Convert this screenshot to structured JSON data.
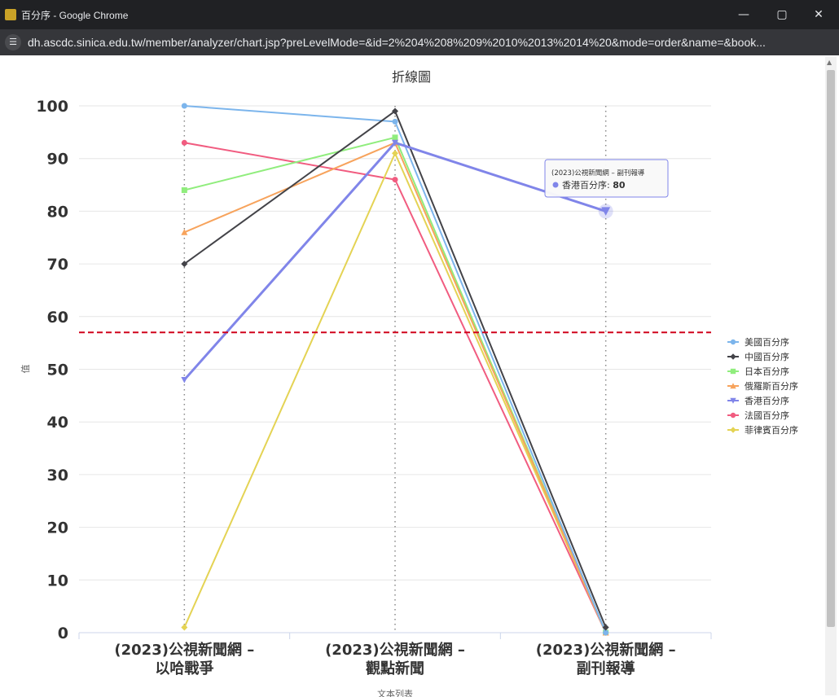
{
  "window": {
    "title": "百分序 - Google Chrome",
    "url": "dh.ascdc.sinica.edu.tw/member/analyzer/chart.jsp?preLevelMode=&id=2%204%208%209%2010%2013%2014%20&mode=order&name=&book..."
  },
  "chart_data": {
    "type": "line",
    "title": "折線圖",
    "xlabel": "文本列表",
    "ylabel": "值",
    "ylim": [
      0,
      100
    ],
    "yticks": [
      "0",
      "10",
      "20",
      "30",
      "40",
      "50",
      "60",
      "70",
      "80",
      "90",
      "100"
    ],
    "categories": [
      "(2023)公視新聞網 – 以哈戰爭",
      "(2023)公視新聞網 – 觀點新聞",
      "(2023)公視新聞網 – 副刊報導"
    ],
    "category_lines": [
      [
        "(2023)公視新聞網 –",
        "以哈戰爭"
      ],
      [
        "(2023)公視新聞網 –",
        "觀點新聞"
      ],
      [
        "(2023)公視新聞網 –",
        "副刊報導"
      ]
    ],
    "reference_line": 57,
    "reference_color": "#d0021b",
    "grid": true,
    "legend_position": "right",
    "series": [
      {
        "name": "美國百分序",
        "color": "#7cb5ec",
        "marker": "circle",
        "values": [
          100,
          97,
          0
        ]
      },
      {
        "name": "中國百分序",
        "color": "#434348",
        "marker": "diamond",
        "values": [
          70,
          99,
          1
        ]
      },
      {
        "name": "日本百分序",
        "color": "#90ed7d",
        "marker": "square",
        "values": [
          84,
          94,
          0
        ]
      },
      {
        "name": "俄羅斯百分序",
        "color": "#f7a35c",
        "marker": "triangle",
        "values": [
          76,
          93,
          0
        ]
      },
      {
        "name": "香港百分序",
        "color": "#8085e9",
        "marker": "triangle-down",
        "values": [
          48,
          93,
          80
        ]
      },
      {
        "name": "法國百分序",
        "color": "#f15c80",
        "marker": "circle",
        "values": [
          93,
          86,
          0
        ]
      },
      {
        "name": "菲律賓百分序",
        "color": "#e4d354",
        "marker": "diamond",
        "values": [
          1,
          91,
          0
        ]
      }
    ],
    "tooltip": {
      "header": "(2023)公視新聞網 – 副刊報導",
      "label": "香港百分序: ",
      "value": "80"
    }
  }
}
